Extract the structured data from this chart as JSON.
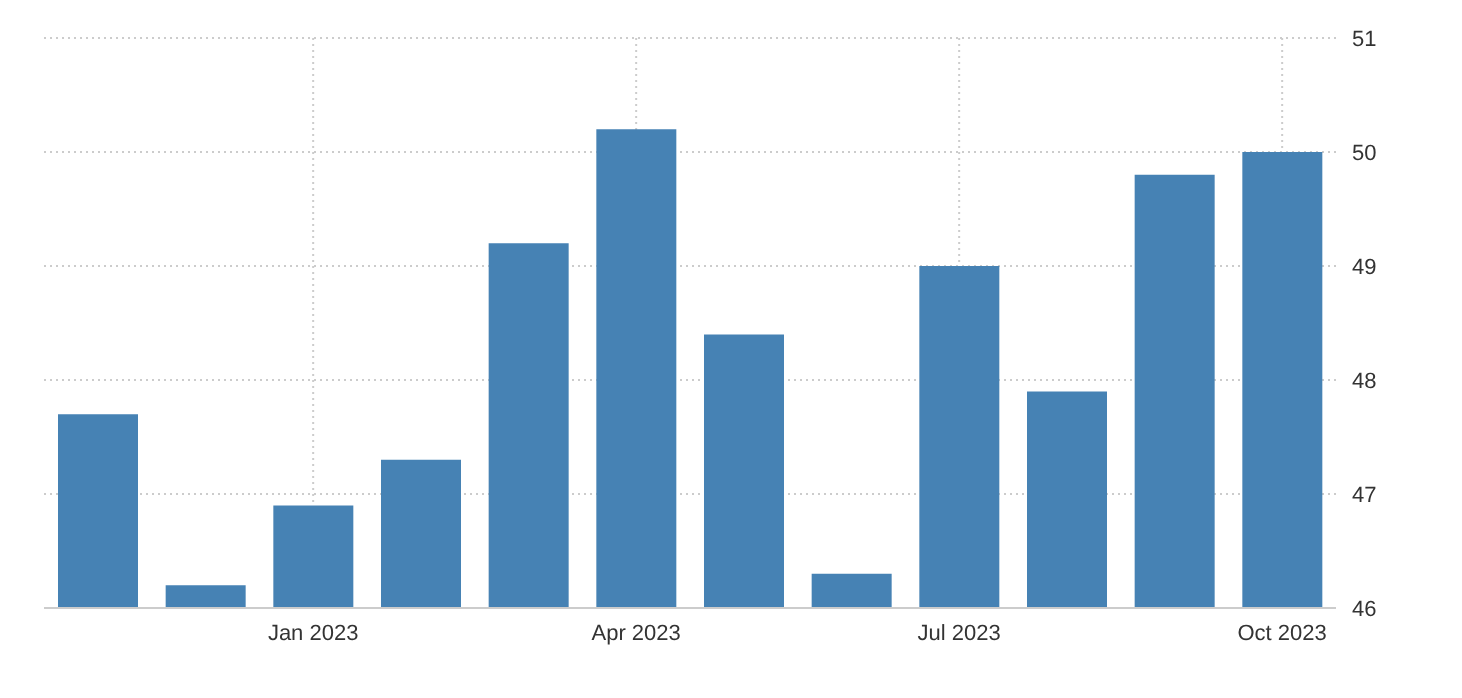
{
  "chart_data": {
    "type": "bar",
    "categories": [
      null,
      null,
      "Jan 2023",
      null,
      null,
      "Apr 2023",
      null,
      null,
      "Jul 2023",
      null,
      null,
      "Oct 2023"
    ],
    "values": [
      47.7,
      46.2,
      46.9,
      47.3,
      49.2,
      50.2,
      48.4,
      46.3,
      49.0,
      47.9,
      49.8,
      50.0
    ],
    "color": "#4682b4",
    "ylim": [
      46,
      51
    ],
    "yticks": [
      46,
      47,
      48,
      49,
      50,
      51
    ],
    "grid": true
  }
}
